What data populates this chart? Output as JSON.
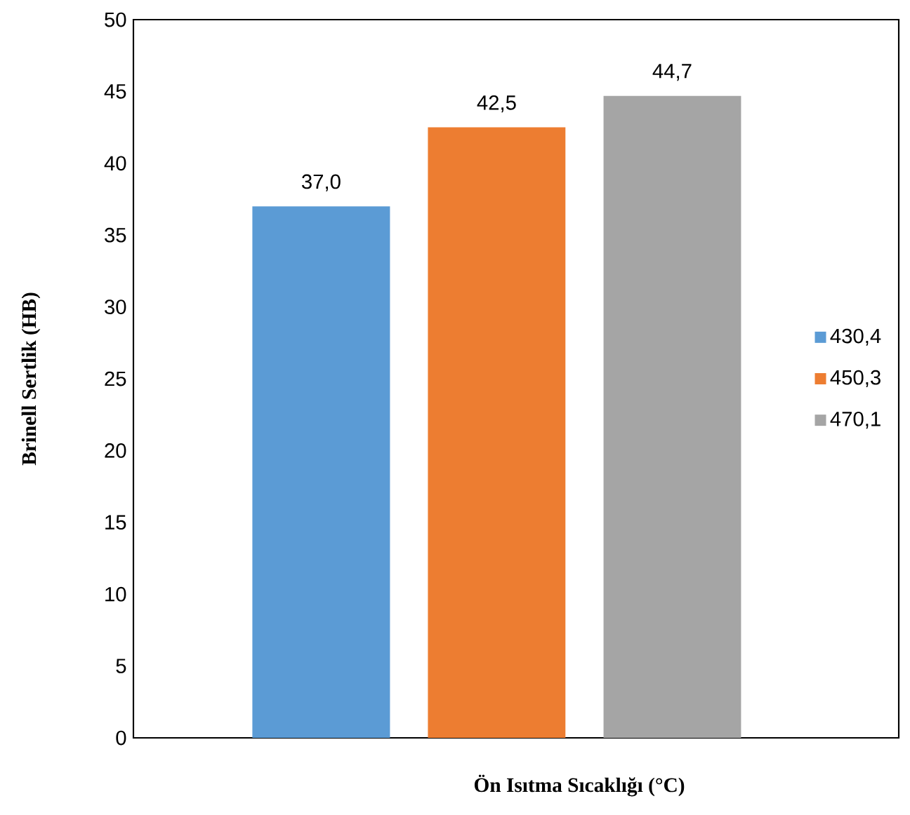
{
  "chart_data": {
    "type": "bar",
    "xlabel": "Ön Isıtma Sıcaklığı (°C)",
    "ylabel": "Brinell Sertlik (HB)",
    "categories": [
      null
    ],
    "series": [
      {
        "name": "430,4",
        "color": "#5b9bd5",
        "values": [
          37.0
        ],
        "value_labels": [
          "37,0"
        ]
      },
      {
        "name": "450,3",
        "color": "#ed7d31",
        "values": [
          42.5
        ],
        "value_labels": [
          "42,5"
        ]
      },
      {
        "name": "470,1",
        "color": "#a5a5a5",
        "values": [
          44.7
        ],
        "value_labels": [
          "44,7"
        ]
      }
    ],
    "ylim": [
      0,
      50
    ],
    "yticks": [
      0,
      5,
      10,
      15,
      20,
      25,
      30,
      35,
      40,
      45,
      50
    ],
    "legend": "right",
    "grid": false
  }
}
